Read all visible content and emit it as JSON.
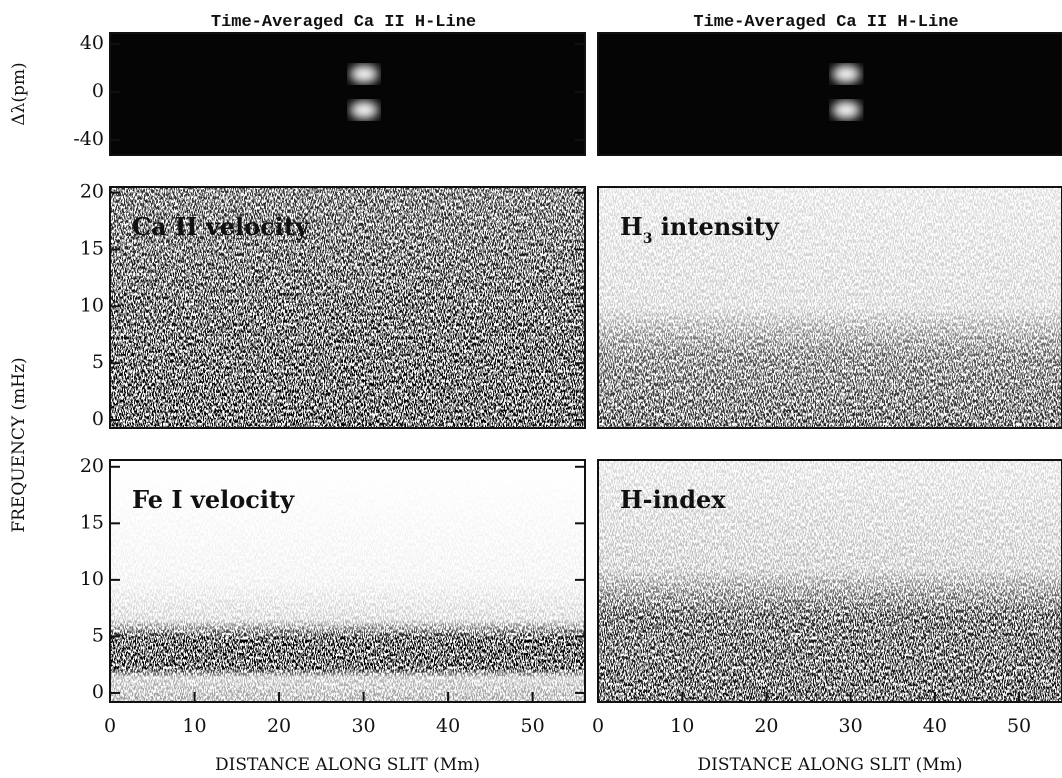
{
  "ylabel": "FREQUENCY (mHz)",
  "chart_data": [
    {
      "type": "image",
      "title": "Time-Averaged Ca II H-Line",
      "ylabel": "Δλ(pm)",
      "ylim": [
        -52.5,
        49.2
      ],
      "yticks": [
        40,
        0,
        -40
      ]
    },
    {
      "type": "image",
      "title": "Time-Averaged Ca II H-Line",
      "ylim": [
        -52.5,
        49.2
      ]
    },
    {
      "type": "image",
      "label": [
        "Ca II velocity"
      ],
      "ylim": [
        -0.7,
        20.5
      ],
      "yticks": [
        20,
        15,
        10,
        5,
        0
      ]
    },
    {
      "type": "image",
      "label": [
        "H",
        "3",
        " intensity"
      ],
      "ylim": [
        -0.7,
        20.5
      ]
    },
    {
      "type": "image",
      "label": [
        "Fe I velocity"
      ],
      "xlim": [
        0,
        56.2
      ],
      "xticks": [
        0,
        10,
        20,
        30,
        40,
        50
      ],
      "xlabel": "DISTANCE ALONG SLIT (Mm)",
      "ylim": [
        -0.8,
        20.6
      ],
      "yticks": [
        20,
        15,
        10,
        5,
        0
      ]
    },
    {
      "type": "image",
      "label": [
        "H-index"
      ],
      "xlim": [
        0,
        55.1
      ],
      "xticks": [
        0,
        10,
        20,
        30,
        40,
        50
      ],
      "xlabel": "DISTANCE ALONG SLIT (Mm)",
      "ylim": [
        -0.8,
        20.6
      ]
    }
  ]
}
